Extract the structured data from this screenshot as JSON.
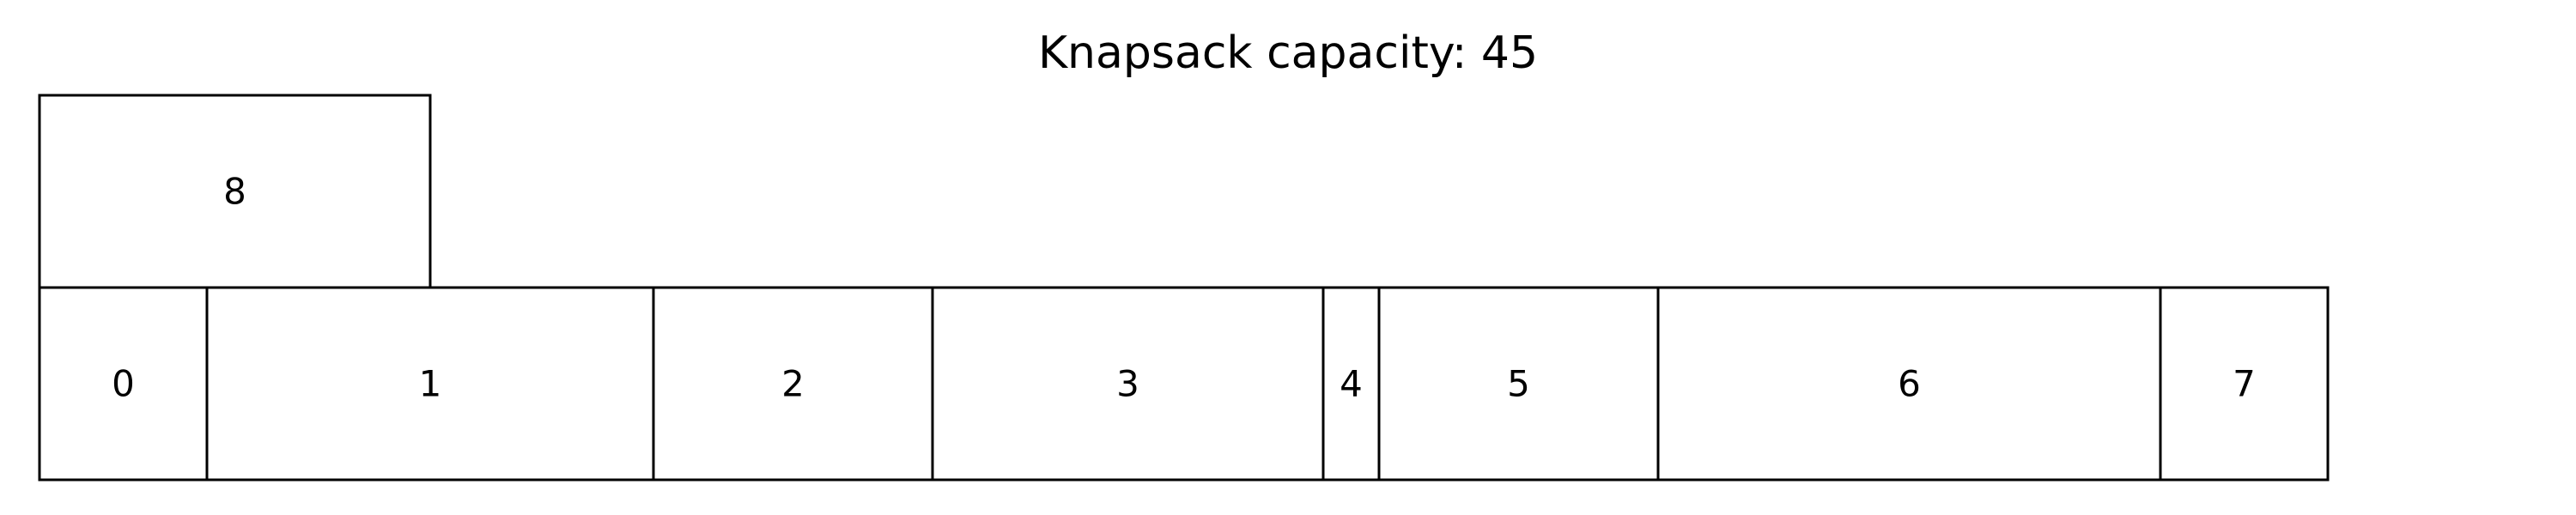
{
  "title": "Knapsack capacity: 45",
  "colors": {
    "stroke": "#000000",
    "fill": "#ffffff"
  },
  "items": [
    {
      "label": "0",
      "width": 3.0
    },
    {
      "label": "1",
      "width": 8.0
    },
    {
      "label": "2",
      "width": 5.0
    },
    {
      "label": "3",
      "width": 7.0
    },
    {
      "label": "4",
      "width": 1.0
    },
    {
      "label": "5",
      "width": 5.0
    },
    {
      "label": "6",
      "width": 9.0
    },
    {
      "label": "7",
      "width": 3.0
    }
  ],
  "overflow_items": [
    {
      "label": "8",
      "width": 7.0
    }
  ]
}
